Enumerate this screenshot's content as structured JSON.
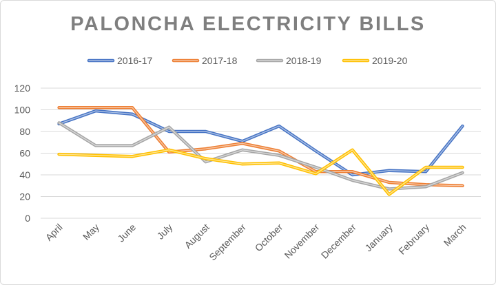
{
  "chart_data": {
    "type": "line",
    "title": "PALONCHA ELECTRICITY BILLS",
    "xlabel": "",
    "ylabel": "",
    "categories": [
      "April",
      "May",
      "June",
      "July",
      "August",
      "September",
      "October",
      "November",
      "December",
      "January",
      "February",
      "March"
    ],
    "ylim": [
      0,
      120
    ],
    "yticks": [
      0,
      20,
      40,
      60,
      80,
      100,
      120
    ],
    "grid": true,
    "legend": "top",
    "series": [
      {
        "name": "2016-17",
        "color": "#4472c4",
        "values": [
          87,
          99,
          96,
          80,
          80,
          71,
          85,
          62,
          40,
          44,
          43,
          85
        ]
      },
      {
        "name": "2017-18",
        "color": "#ed7d31",
        "values": [
          102,
          102,
          102,
          61,
          64,
          69,
          62,
          43,
          43,
          33,
          31,
          30
        ]
      },
      {
        "name": "2018-19",
        "color": "#a5a5a5",
        "values": [
          88,
          67,
          67,
          84,
          52,
          63,
          58,
          47,
          35,
          27,
          29,
          42
        ]
      },
      {
        "name": "2019-20",
        "color": "#ffc000",
        "values": [
          59,
          58,
          57,
          63,
          55,
          50,
          51,
          41,
          63,
          22,
          47,
          47
        ]
      }
    ]
  }
}
